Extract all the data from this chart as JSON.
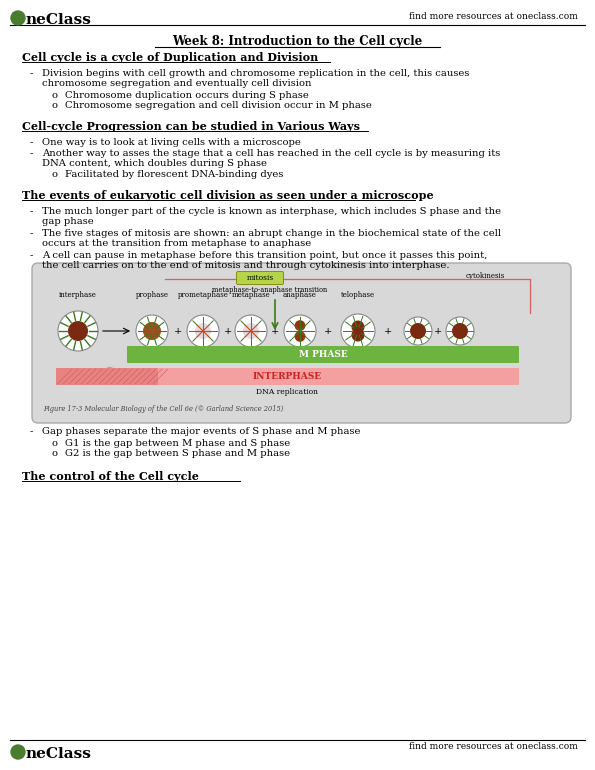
{
  "title": "Week 8: Introduction to the Cell cycle",
  "header_logo_text": "OneClass",
  "header_right": "find more resources at oneclass.com",
  "footer_right": "find more resources at oneclass.com",
  "s1_heading": "Cell cycle is a cycle of Duplication and Division",
  "s1_b1_line1": "Division begins with cell growth and chromosome replication in the cell, this causes",
  "s1_b1_line2": "chromosome segregation and eventually cell division",
  "s1_sb1": "Chromosome duplication occurs during S phase",
  "s1_sb2": "Chromosome segregation and cell division occur in M phase",
  "s2_heading": "Cell-cycle Progression can be studied in Various Ways",
  "s2_b1": "One way is to look at living cells with a microscope",
  "s2_b2_line1": "Another way to asses the stage that a cell has reached in the cell cycle is by measuring its",
  "s2_b2_line2": "DNA content, which doubles during S phase",
  "s2_sb1": "Facilitated by florescent DNA-binding dyes",
  "s3_heading": "The events of eukaryotic cell division as seen under a microscope",
  "s3_b1_line1": "The much longer part of the cycle is known as interphase, which includes S phase and the",
  "s3_b1_line2": "gap phase",
  "s3_b2_line1": "The five stages of mitosis are shown: an abrupt change in the biochemical state of the cell",
  "s3_b2_line2": "occurs at the transition from metaphase to anaphase",
  "s3_b3_line1": "A cell can pause in metaphase before this transition point, but once it passes this point,",
  "s3_b3_line2": "the cell carries on to the end of mitosis and through cytokinesis into interphase.",
  "s4_heading": "Gap phases separate the major events of S phase and M phase",
  "s4_b1": "- Gap phases separate the major events of S phase and M phase",
  "s4_sb1": "G1 is the gap between M phase and S phase",
  "s4_sb2": "G2 is the gap between S phase and M phase",
  "s5_heading": "The control of the Cell cycle",
  "fig_caption": "Figure 17-3 Molecular Biology of the Cell 6e (© Garland Science 2015)",
  "bg": "#ffffff",
  "black": "#000000",
  "green": "#4a7c2f",
  "green_bar": "#6db33f",
  "pink_bar": "#f4a0a0",
  "pink_line": "#d96060",
  "mitosis_green": "#b5d44a",
  "gray_bg": "#d0d0d0",
  "heading_fs": 8.0,
  "body_fs": 7.2,
  "title_fs": 8.5
}
